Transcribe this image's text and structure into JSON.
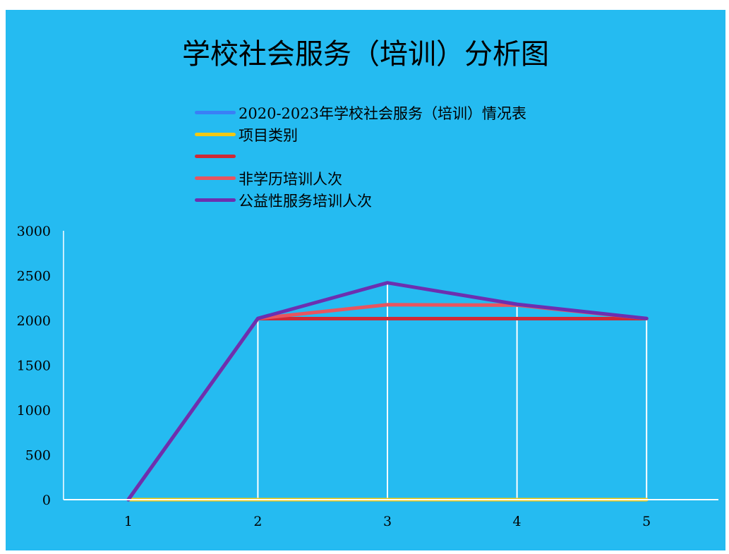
{
  "chart_data": {
    "type": "line",
    "title": "学校社会服务（培训）分析图",
    "categories": [
      "1",
      "2",
      "3",
      "4",
      "5"
    ],
    "series": [
      {
        "name": "2020-2023年学校社会服务（培训）情况表",
        "color": "#3a7ff6",
        "values": [
          0,
          0,
          0,
          0,
          0
        ]
      },
      {
        "name": "项目类别",
        "color": "#f2c811",
        "values": [
          0,
          0,
          0,
          0,
          0
        ]
      },
      {
        "name": "",
        "color": "#cf2936",
        "values": [
          0,
          2020,
          2020,
          2020,
          2020
        ]
      },
      {
        "name": "非学历培训人次",
        "color": "#e8555f",
        "values": [
          0,
          2021,
          2175,
          2170,
          2021
        ]
      },
      {
        "name": "公益性服务培训人次",
        "color": "#6c2fb0",
        "values": [
          0,
          2022,
          2420,
          2180,
          2022
        ]
      }
    ],
    "yticks": [
      "0",
      "500",
      "1000",
      "1500",
      "2000",
      "2500",
      "3000"
    ],
    "ylim": [
      0,
      3000
    ],
    "grid": "vertical",
    "legend_position": "top"
  }
}
